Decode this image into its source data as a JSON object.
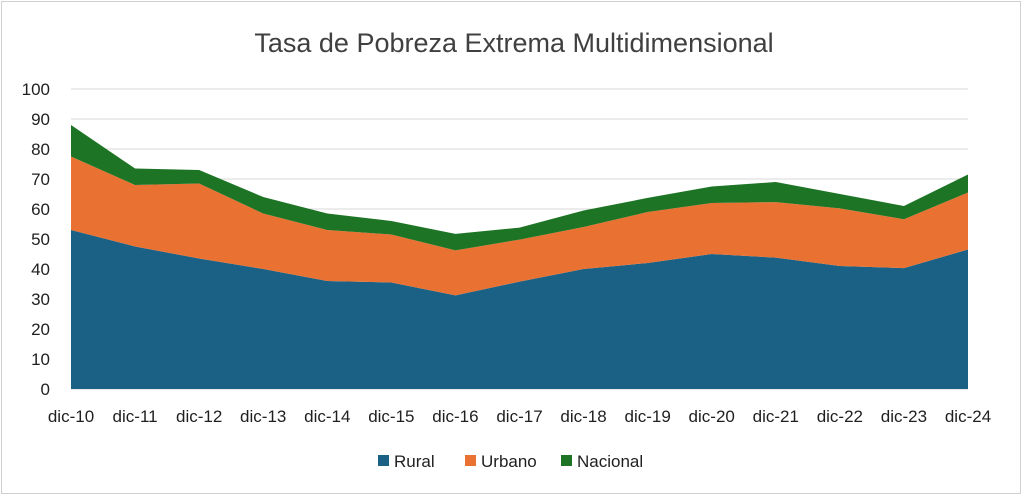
{
  "chart_data": {
    "type": "area",
    "stacked": true,
    "title": "Tasa de Pobreza Extrema Multidimensional",
    "xlabel": "",
    "ylabel": "",
    "ylim": [
      0,
      100
    ],
    "yticks": [
      0,
      10,
      20,
      30,
      40,
      50,
      60,
      70,
      80,
      90,
      100
    ],
    "grid": true,
    "legend_position": "bottom",
    "categories": [
      "dic-10",
      "dic-11",
      "dic-12",
      "dic-13",
      "dic-14",
      "dic-15",
      "dic-16",
      "dic-17",
      "dic-18",
      "dic-19",
      "dic-20",
      "dic-21",
      "dic-22",
      "dic-23",
      "dic-24"
    ],
    "series": [
      {
        "name": "Rural",
        "color": "#1b6185",
        "values": [
          53,
          47.5,
          43.5,
          40,
          36,
          35.5,
          31.2,
          35.8,
          40,
          42,
          45,
          43.8,
          41,
          40.3,
          46.5
        ]
      },
      {
        "name": "Urbano",
        "color": "#e97132",
        "values": [
          24.5,
          20.5,
          25,
          18.5,
          17,
          16,
          15,
          14,
          14,
          17,
          17,
          18.5,
          19.2,
          16.3,
          19
        ]
      },
      {
        "name": "Nacional",
        "color": "#1e7425",
        "values": [
          10.5,
          5.5,
          4.5,
          5.5,
          5.5,
          4.5,
          5.5,
          4,
          5.5,
          4.7,
          5.5,
          6.7,
          4.8,
          4.4,
          6
        ]
      }
    ]
  }
}
